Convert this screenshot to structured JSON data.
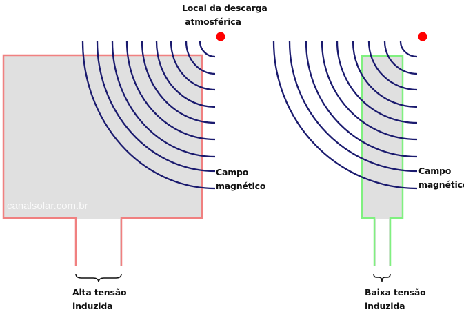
{
  "strike_label": [
    "Local da descarga",
    "atmosférica"
  ],
  "left": {
    "field_label": [
      "Campo",
      "magnético"
    ],
    "voltage_label": [
      "Alta tensão",
      "induzida"
    ],
    "outline_color": "#f08080"
  },
  "right": {
    "field_label": [
      "Campo",
      "magnético"
    ],
    "voltage_label": [
      "Baixa tensão",
      "induzida"
    ],
    "outline_color": "#80f080"
  },
  "watermark": "canalsolar.com.br",
  "colors": {
    "field_lines": "#1a1a6e",
    "strike": "#ff0000",
    "fill": "#e0e0e0"
  }
}
